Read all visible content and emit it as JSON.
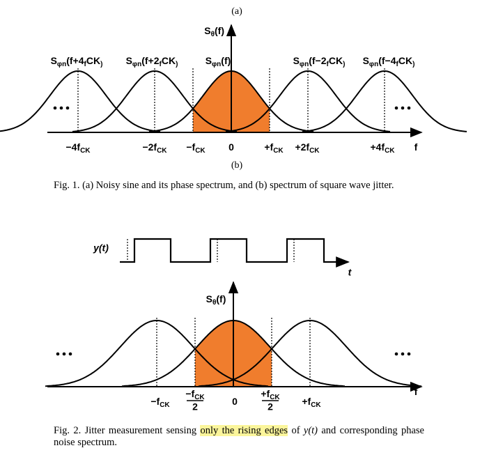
{
  "figure1": {
    "panel_a": "(a)",
    "y_axis_label": [
      "S",
      "θ",
      "(f)"
    ],
    "curve_labels": [
      [
        "S",
        "φn",
        "(f+4",
        "f",
        "CK",
        ")"
      ],
      [
        "S",
        "φn",
        "(f+2",
        "f",
        "CK",
        ")"
      ],
      [
        "S",
        "φn",
        "(f)"
      ],
      [
        "S",
        "φn",
        "(f−2",
        "f",
        "CK",
        ")"
      ],
      [
        "S",
        "φn",
        "(f−4",
        "f",
        "CK",
        ")"
      ]
    ],
    "x_axis_labels": [
      [
        "−4f",
        "CK"
      ],
      [
        "−2f",
        "CK"
      ],
      [
        "−f",
        "CK"
      ],
      [
        "0"
      ],
      [
        "+f",
        "CK"
      ],
      [
        "+2f",
        "CK"
      ],
      [
        "+4f",
        "CK"
      ],
      [
        "f"
      ]
    ],
    "panel_b": "(b)",
    "caption": "Fig. 1. (a) Noisy sine and its phase spectrum, and (b) spectrum of square wave jitter."
  },
  "figure2": {
    "signal_label": "y(t)",
    "time_label": "t",
    "y_axis_label": [
      "S",
      "θ",
      "(f)"
    ],
    "x_axis_labels": [
      [
        "−f",
        "CK"
      ],
      {
        "num": [
          "−f",
          "CK"
        ],
        "den": "2"
      },
      [
        "0"
      ],
      {
        "num": [
          "+f",
          "CK"
        ],
        "den": "2"
      },
      [
        "+f",
        "CK"
      ],
      [
        "f"
      ]
    ],
    "caption": [
      "Fig. 2. Jitter measurement sensing ",
      "only the rising edges",
      " of ",
      "y(t)",
      " and corresponding phase noise spectrum."
    ]
  }
}
